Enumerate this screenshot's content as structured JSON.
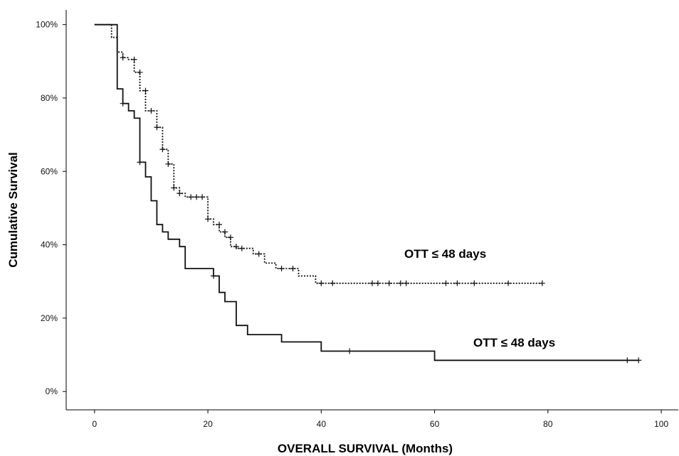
{
  "chart_data": {
    "type": "line",
    "subtype": "kaplan-meier-step",
    "xlabel": "OVERALL SURVIVAL (Months)",
    "ylabel": "Cumulative  Survival",
    "xlim": [
      -5,
      103
    ],
    "ylim": [
      -5,
      104
    ],
    "xticks": [
      0,
      20,
      40,
      60,
      80,
      100
    ],
    "xtick_labels": [
      "0",
      "20",
      "40",
      "60",
      "80",
      "100"
    ],
    "yticks": [
      0,
      20,
      40,
      60,
      80,
      100
    ],
    "ytick_labels": [
      "0%",
      "20%",
      "40%",
      "60%",
      "80%",
      "100%"
    ],
    "grid": false,
    "legend": "none",
    "annotations": [
      {
        "text": "OTT ≤ 48 days",
        "near_series": "dotted"
      },
      {
        "text": "OTT ≤ 48 days",
        "near_series": "solid"
      }
    ],
    "series": [
      {
        "line_style": "dotted",
        "steps": [
          [
            0,
            100
          ],
          [
            3,
            100
          ],
          [
            3,
            96.5
          ],
          [
            4,
            96.5
          ],
          [
            4,
            92.5
          ],
          [
            5,
            92.5
          ],
          [
            5,
            91
          ],
          [
            6,
            91
          ],
          [
            6,
            90.5
          ],
          [
            7,
            90.5
          ],
          [
            7,
            87
          ],
          [
            8,
            87
          ],
          [
            8,
            82
          ],
          [
            9,
            82
          ],
          [
            9,
            76.5
          ],
          [
            11,
            76.5
          ],
          [
            11,
            72
          ],
          [
            12,
            72
          ],
          [
            12,
            66
          ],
          [
            13,
            66
          ],
          [
            13,
            62
          ],
          [
            14,
            62
          ],
          [
            14,
            55.5
          ],
          [
            15,
            55.5
          ],
          [
            15,
            54
          ],
          [
            16,
            54
          ],
          [
            16,
            53
          ],
          [
            20,
            53
          ],
          [
            20,
            47
          ],
          [
            21,
            47
          ],
          [
            21,
            45.5
          ],
          [
            22,
            45.5
          ],
          [
            22,
            43.5
          ],
          [
            23,
            43.5
          ],
          [
            23,
            42
          ],
          [
            24,
            42
          ],
          [
            24,
            39.5
          ],
          [
            25,
            39.5
          ],
          [
            25,
            39
          ],
          [
            28,
            39
          ],
          [
            28,
            37.5
          ],
          [
            30,
            37.5
          ],
          [
            30,
            35
          ],
          [
            32,
            35
          ],
          [
            32,
            33.5
          ],
          [
            36,
            33.5
          ],
          [
            36,
            31.5
          ],
          [
            39,
            31.5
          ],
          [
            39,
            29.5
          ],
          [
            79,
            29.5
          ]
        ],
        "censored": [
          [
            5,
            91
          ],
          [
            7,
            90.5
          ],
          [
            8,
            87
          ],
          [
            9,
            82
          ],
          [
            10,
            76.5
          ],
          [
            11,
            72
          ],
          [
            12,
            66
          ],
          [
            13,
            62
          ],
          [
            14,
            55.5
          ],
          [
            15,
            54
          ],
          [
            17,
            53
          ],
          [
            18,
            53
          ],
          [
            19,
            53
          ],
          [
            20,
            47
          ],
          [
            22,
            45.5
          ],
          [
            23,
            43.5
          ],
          [
            24,
            42
          ],
          [
            25,
            39.5
          ],
          [
            26,
            39
          ],
          [
            29,
            37.5
          ],
          [
            33,
            33.5
          ],
          [
            35,
            33.5
          ],
          [
            40,
            29.5
          ],
          [
            42,
            29.5
          ],
          [
            49,
            29.5
          ],
          [
            50,
            29.5
          ],
          [
            52,
            29.5
          ],
          [
            54,
            29.5
          ],
          [
            55,
            29.5
          ],
          [
            62,
            29.5
          ],
          [
            64,
            29.5
          ],
          [
            67,
            29.5
          ],
          [
            73,
            29.5
          ],
          [
            79,
            29.5
          ]
        ]
      },
      {
        "line_style": "solid",
        "steps": [
          [
            0,
            100
          ],
          [
            4,
            100
          ],
          [
            4,
            82.5
          ],
          [
            5,
            82.5
          ],
          [
            5,
            78.5
          ],
          [
            6,
            78.5
          ],
          [
            6,
            76.5
          ],
          [
            7,
            76.5
          ],
          [
            7,
            74.5
          ],
          [
            8,
            74.5
          ],
          [
            8,
            62.5
          ],
          [
            9,
            62.5
          ],
          [
            9,
            58.5
          ],
          [
            10,
            58.5
          ],
          [
            10,
            52
          ],
          [
            11,
            52
          ],
          [
            11,
            45.5
          ],
          [
            12,
            45.5
          ],
          [
            12,
            43.5
          ],
          [
            13,
            43.5
          ],
          [
            13,
            41.5
          ],
          [
            15,
            41.5
          ],
          [
            15,
            39.5
          ],
          [
            16,
            39.5
          ],
          [
            16,
            33.5
          ],
          [
            21,
            33.5
          ],
          [
            21,
            31.5
          ],
          [
            22,
            31.5
          ],
          [
            22,
            27
          ],
          [
            23,
            27
          ],
          [
            23,
            24.5
          ],
          [
            25,
            24.5
          ],
          [
            25,
            18
          ],
          [
            27,
            18
          ],
          [
            27,
            15.5
          ],
          [
            33,
            15.5
          ],
          [
            33,
            13.5
          ],
          [
            40,
            13.5
          ],
          [
            40,
            11
          ],
          [
            60,
            11
          ],
          [
            60,
            8.5
          ],
          [
            96,
            8.5
          ]
        ],
        "censored": [
          [
            5,
            78.5
          ],
          [
            8,
            62.5
          ],
          [
            21,
            31.5
          ],
          [
            45,
            11
          ],
          [
            94,
            8.5
          ],
          [
            96,
            8.5
          ]
        ]
      }
    ]
  }
}
